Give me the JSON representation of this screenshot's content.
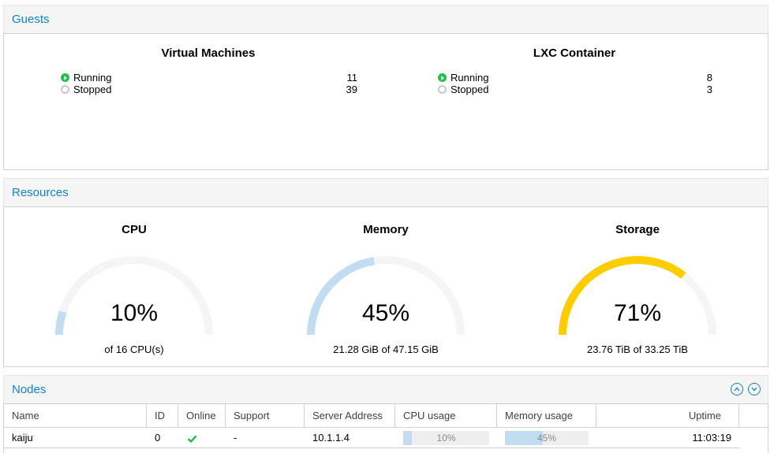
{
  "colors": {
    "accent": "#157fcc",
    "running": "#21bf4b",
    "stopped": "#c8c8c8",
    "gauge_low": "#c2ddf2",
    "gauge_high": "#ffcc00",
    "gauge_track": "#f5f5f5"
  },
  "guests": {
    "title": "Guests",
    "vm": {
      "title": "Virtual Machines",
      "rows": [
        {
          "label": "Running",
          "count": "11",
          "icon": "running-icon"
        },
        {
          "label": "Stopped",
          "count": "39",
          "icon": "stopped-icon"
        }
      ]
    },
    "lxc": {
      "title": "LXC Container",
      "rows": [
        {
          "label": "Running",
          "count": "8",
          "icon": "running-icon"
        },
        {
          "label": "Stopped",
          "count": "3",
          "icon": "stopped-icon"
        }
      ]
    }
  },
  "resources": {
    "title": "Resources",
    "cpu": {
      "title": "CPU",
      "value": "10%",
      "fraction": 0.1,
      "sub": "of 16 CPU(s)",
      "color": "#c2ddf2"
    },
    "memory": {
      "title": "Memory",
      "value": "45%",
      "fraction": 0.45,
      "sub": "21.28 GiB of 47.15 GiB",
      "color": "#c2ddf2"
    },
    "storage": {
      "title": "Storage",
      "value": "71%",
      "fraction": 0.71,
      "sub": "23.76 TiB of 33.25 TiB",
      "color": "#ffcc00"
    }
  },
  "nodes": {
    "title": "Nodes",
    "tools": {
      "collapse": "chevron-up-icon",
      "expand": "chevron-down-icon"
    },
    "columns": {
      "name": "Name",
      "id": "ID",
      "online": "Online",
      "support": "Support",
      "address": "Server Address",
      "cpu": "CPU usage",
      "memory": "Memory usage",
      "uptime": "Uptime"
    },
    "rows": [
      {
        "name": "kaiju",
        "id": "0",
        "online_icon": "check-icon",
        "support": "-",
        "address": "10.1.1.4",
        "cpu": "10%",
        "cpu_fraction": 0.1,
        "memory": "45%",
        "memory_fraction": 0.45,
        "uptime": "11:03:19"
      }
    ]
  }
}
